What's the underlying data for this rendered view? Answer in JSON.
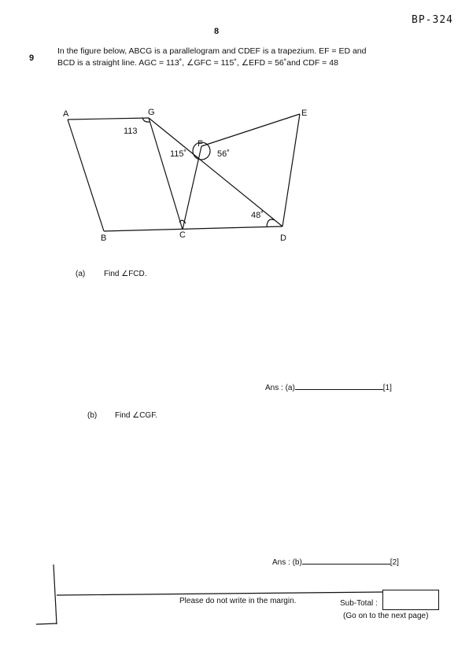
{
  "header": {
    "code": "BP-324",
    "page_number": "8"
  },
  "question": {
    "number": "9",
    "line1": "In the figure below, ABCG is a parallelogram and CDEF is a trapezium.  EF = ED and",
    "line2": "BCD is a straight line.    AGC = 113˚, ∠GFC = 115˚, ∠EFD = 56˚and    CDF = 48"
  },
  "figure": {
    "points": {
      "A": "A",
      "G": "G",
      "E": "E",
      "F": "F",
      "B": "B",
      "C": "C",
      "D": "D"
    },
    "angles": {
      "agc": "113",
      "gfc": "115˚",
      "efd": "56˚",
      "cdf": "48˚"
    }
  },
  "part_a": {
    "label": "(a)",
    "prompt": "Find ∠FCD.",
    "answer_label": "Ans : (a)",
    "marks": "[1]"
  },
  "part_b": {
    "label": "(b)",
    "prompt": "Find ∠CGF.",
    "answer_label": "Ans : (b)",
    "marks": "[2]"
  },
  "footer": {
    "margin_note": "Please do not write in the margin.",
    "subtotal_label": "Sub-Total :",
    "next_page": "(Go on to the next page)"
  }
}
